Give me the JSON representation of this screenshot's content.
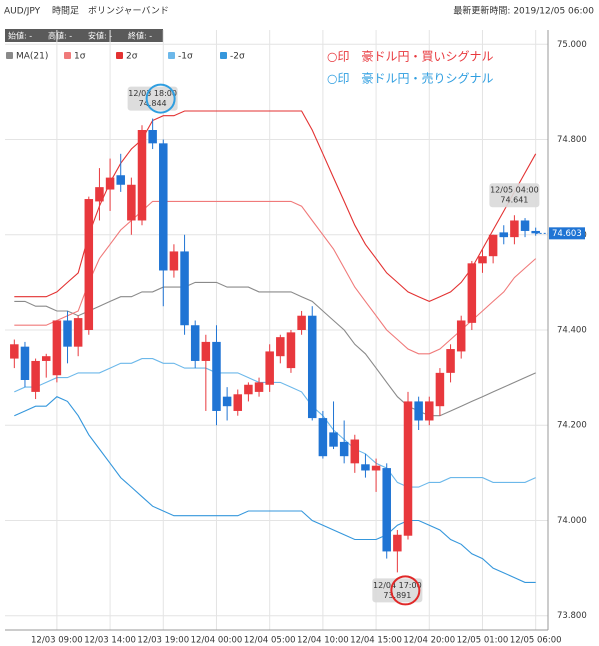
{
  "chart_data": {
    "type": "candlestick",
    "title": "AUD/JPY",
    "subtitle": "時間足　ボリンジャーバンド",
    "updated": "最新更新時間: 2019/12/05 06:00",
    "info": [
      "始値: -",
      "高値: -",
      "安値: -",
      "終値: -"
    ],
    "categories": [
      null,
      null,
      null,
      null,
      "12/03 09:00",
      null,
      null,
      null,
      null,
      "12/03 14:00",
      null,
      null,
      null,
      null,
      "12/03 19:00",
      null,
      null,
      null,
      null,
      "12/04 00:00",
      null,
      null,
      null,
      null,
      "12/04 05:00",
      null,
      null,
      null,
      null,
      "12/04 10:00",
      null,
      null,
      null,
      null,
      "12/04 15:00",
      null,
      null,
      null,
      null,
      "12/04 20:00",
      null,
      null,
      null,
      null,
      "12/05 01:00",
      null,
      null,
      null,
      null,
      "12/05 06:00"
    ],
    "open": [
      74.34,
      74.365,
      74.27,
      74.335,
      74.305,
      74.42,
      74.365,
      74.4,
      74.67,
      74.695,
      74.725,
      74.63,
      74.63,
      74.82,
      74.792,
      74.525,
      74.565,
      74.41,
      74.335,
      74.375,
      74.26,
      74.23,
      74.265,
      74.27,
      74.285,
      74.345,
      74.32,
      74.4,
      74.43,
      74.215,
      74.185,
      74.165,
      74.12,
      74.118,
      74.105,
      74.11,
      73.935,
      73.968,
      74.25,
      74.21,
      74.24,
      74.31,
      74.355,
      74.415,
      74.54,
      74.555,
      74.605,
      74.595,
      74.63,
      74.608
    ],
    "high": [
      74.38,
      74.375,
      74.34,
      74.35,
      74.42,
      74.44,
      74.43,
      74.68,
      74.74,
      74.76,
      74.77,
      74.72,
      74.83,
      74.844,
      74.8,
      74.58,
      74.6,
      74.42,
      74.39,
      74.41,
      74.28,
      74.275,
      74.29,
      74.3,
      74.37,
      74.39,
      74.4,
      74.44,
      74.45,
      74.23,
      74.25,
      74.21,
      74.18,
      74.14,
      74.13,
      74.12,
      73.98,
      74.27,
      74.26,
      74.26,
      74.32,
      74.37,
      74.43,
      74.545,
      74.57,
      74.6,
      74.62,
      74.641,
      74.635,
      74.615
    ],
    "low": [
      74.32,
      74.28,
      74.255,
      74.3,
      74.29,
      74.33,
      74.345,
      74.39,
      74.63,
      74.65,
      74.69,
      74.6,
      74.62,
      74.78,
      74.45,
      74.51,
      74.39,
      74.32,
      74.23,
      74.2,
      74.21,
      74.22,
      74.25,
      74.26,
      74.27,
      74.33,
      74.31,
      74.39,
      74.21,
      74.13,
      74.15,
      74.12,
      74.1,
      74.09,
      74.06,
      73.92,
      73.891,
      73.96,
      74.19,
      74.2,
      74.22,
      74.29,
      74.34,
      74.4,
      74.52,
      74.54,
      74.58,
      74.58,
      74.595,
      74.598
    ],
    "close": [
      74.37,
      74.295,
      74.335,
      74.345,
      74.42,
      74.365,
      74.425,
      74.675,
      74.7,
      74.72,
      74.705,
      74.705,
      74.82,
      74.792,
      74.525,
      74.565,
      74.41,
      74.335,
      74.375,
      74.23,
      74.24,
      74.265,
      74.285,
      74.29,
      74.355,
      74.385,
      74.395,
      74.43,
      74.215,
      74.135,
      74.155,
      74.135,
      74.17,
      74.105,
      74.115,
      73.935,
      73.97,
      74.25,
      74.21,
      74.25,
      74.31,
      74.36,
      74.42,
      74.54,
      74.555,
      74.6,
      74.595,
      74.63,
      74.608,
      74.603
    ],
    "up_color": "#e8383d",
    "down_color": "#1f74d4",
    "series": [
      {
        "name": "MA(21)",
        "color": "#8a8a8a",
        "values": [
          74.46,
          74.46,
          74.45,
          74.45,
          74.44,
          74.44,
          74.43,
          74.44,
          74.45,
          74.46,
          74.47,
          74.47,
          74.48,
          74.48,
          74.49,
          74.49,
          74.49,
          74.5,
          74.5,
          74.5,
          74.49,
          74.49,
          74.49,
          74.48,
          74.48,
          74.48,
          74.48,
          74.47,
          74.46,
          74.44,
          74.42,
          74.4,
          74.37,
          74.35,
          74.32,
          74.29,
          74.26,
          74.24,
          74.23,
          74.22,
          74.22,
          74.23,
          74.24,
          74.25,
          74.26,
          74.27,
          74.28,
          74.29,
          74.3,
          74.31
        ]
      },
      {
        "name": "1σ",
        "color": "#f07a7a",
        "values": [
          74.41,
          74.41,
          74.41,
          74.41,
          74.42,
          74.43,
          74.44,
          74.5,
          74.55,
          74.58,
          74.61,
          74.63,
          74.65,
          74.67,
          74.67,
          74.67,
          74.67,
          74.67,
          74.67,
          74.67,
          74.67,
          74.67,
          74.67,
          74.67,
          74.67,
          74.67,
          74.67,
          74.66,
          74.63,
          74.6,
          74.57,
          74.53,
          74.49,
          74.46,
          74.43,
          74.4,
          74.38,
          74.36,
          74.35,
          74.35,
          74.36,
          74.38,
          74.4,
          74.42,
          74.44,
          74.46,
          74.48,
          74.51,
          74.53,
          74.55
        ]
      },
      {
        "name": "2σ",
        "color": "#e33232",
        "values": [
          74.47,
          74.47,
          74.47,
          74.47,
          74.48,
          74.5,
          74.52,
          74.6,
          74.66,
          74.71,
          74.75,
          74.78,
          74.8,
          74.84,
          74.85,
          74.85,
          74.86,
          74.86,
          74.86,
          74.86,
          74.86,
          74.86,
          74.86,
          74.86,
          74.86,
          74.86,
          74.86,
          74.86,
          74.82,
          74.77,
          74.72,
          74.67,
          74.62,
          74.58,
          74.55,
          74.52,
          74.5,
          74.48,
          74.47,
          74.46,
          74.47,
          74.48,
          74.5,
          74.53,
          74.57,
          74.61,
          74.65,
          74.69,
          74.73,
          74.77
        ]
      },
      {
        "name": "-1σ",
        "color": "#6cb8ea",
        "values": [
          74.27,
          74.28,
          74.28,
          74.29,
          74.3,
          74.3,
          74.31,
          74.31,
          74.31,
          74.32,
          74.33,
          74.33,
          74.34,
          74.34,
          74.33,
          74.33,
          74.32,
          74.32,
          74.32,
          74.31,
          74.31,
          74.31,
          74.3,
          74.29,
          74.29,
          74.29,
          74.28,
          74.27,
          74.24,
          74.22,
          74.19,
          74.17,
          74.15,
          74.14,
          74.12,
          74.11,
          74.08,
          74.07,
          74.07,
          74.08,
          74.08,
          74.09,
          74.09,
          74.09,
          74.09,
          74.08,
          74.08,
          74.08,
          74.08,
          74.09
        ]
      },
      {
        "name": "-2σ",
        "color": "#3597dc",
        "values": [
          74.22,
          74.23,
          74.24,
          74.24,
          74.26,
          74.25,
          74.22,
          74.18,
          74.15,
          74.12,
          74.09,
          74.07,
          74.05,
          74.03,
          74.02,
          74.01,
          74.01,
          74.01,
          74.01,
          74.01,
          74.01,
          74.01,
          74.02,
          74.02,
          74.02,
          74.02,
          74.02,
          74.02,
          74.0,
          73.99,
          73.98,
          73.97,
          73.96,
          73.96,
          73.96,
          73.97,
          73.99,
          74.0,
          74.0,
          73.99,
          73.98,
          73.96,
          73.95,
          73.93,
          73.92,
          73.9,
          73.89,
          73.88,
          73.87,
          73.87
        ]
      }
    ],
    "ylim": [
      73.77,
      75.03
    ],
    "yticks": [
      {
        "value": 73.8,
        "label": "73.800"
      },
      {
        "value": 74.0,
        "label": "74.000"
      },
      {
        "value": 74.2,
        "label": "74.200"
      },
      {
        "value": 74.4,
        "label": "74.400"
      },
      {
        "value": 74.6,
        "label": "74.600"
      },
      {
        "value": 74.8,
        "label": "74.800"
      },
      {
        "value": 75.0,
        "label": "75.000"
      }
    ],
    "grid": true,
    "last_price": 74.603,
    "notes": [
      {
        "text": "○印　豪ドル円・買いシグナル",
        "color": "#e8383d"
      },
      {
        "text": "○印　豪ドル円・売りシグナル",
        "color": "#2f9ee0"
      }
    ],
    "callouts": [
      {
        "time": "12/03 18:00",
        "price": 74.844,
        "circle_color": "#2f9ee0"
      },
      {
        "time": "12/05 04:00",
        "price": 74.641
      },
      {
        "time": "12/04 17:00",
        "price": 73.891,
        "circle_color": "#e02828"
      }
    ]
  }
}
